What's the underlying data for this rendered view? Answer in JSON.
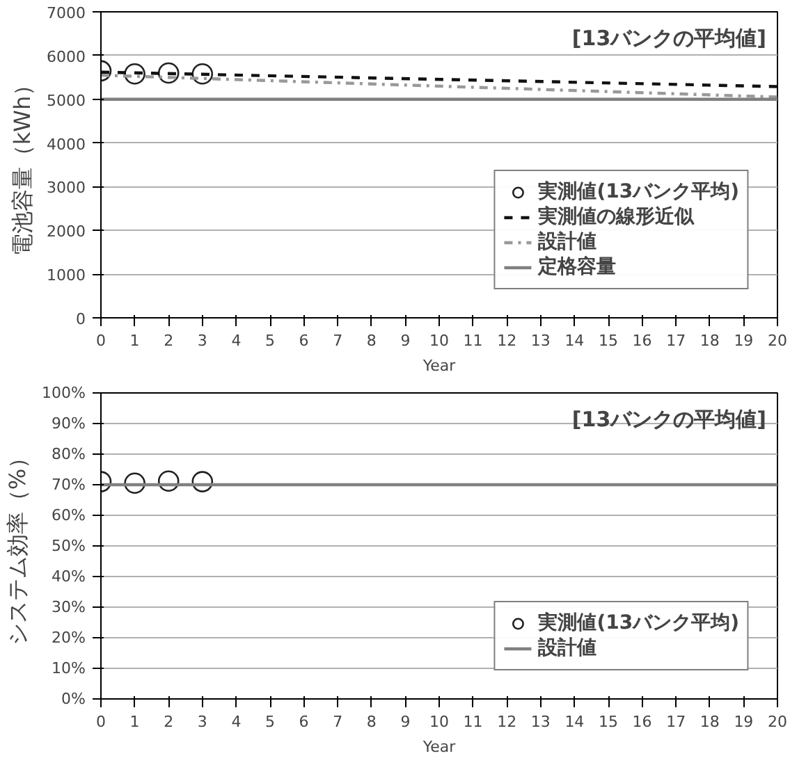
{
  "chart_data": [
    {
      "type": "line",
      "annotations": [
        "[13バンクの平均値]"
      ],
      "xlabel": "Year",
      "ylabel": "電池容量（kWh）",
      "xlim": [
        0,
        20
      ],
      "xticks": [
        0,
        1,
        2,
        3,
        4,
        5,
        6,
        7,
        8,
        9,
        10,
        11,
        12,
        13,
        14,
        15,
        16,
        17,
        18,
        19,
        20
      ],
      "ylim": [
        0,
        7000
      ],
      "yticks": [
        0,
        1000,
        2000,
        3000,
        4000,
        5000,
        6000,
        7000
      ],
      "grid": "y",
      "legend": "bottom right",
      "series": [
        {
          "name": "実測値(13バンク平均)",
          "type": "scatter",
          "marker": "circle",
          "color": "#222222",
          "x": [
            0,
            1,
            2,
            3
          ],
          "values": [
            5650,
            5580,
            5600,
            5580
          ]
        },
        {
          "name": "実測値の線形近似",
          "line_style": "dashed",
          "color": "#111111",
          "x": [
            0,
            20
          ],
          "values": [
            5620,
            5290
          ]
        },
        {
          "name": "設計値",
          "line_style": "dashdot",
          "color": "#999999",
          "x": [
            0,
            20
          ],
          "values": [
            5550,
            5050
          ]
        },
        {
          "name": "定格容量",
          "line_style": "solid",
          "color": "#808080",
          "x": [
            0,
            20
          ],
          "values": [
            5000,
            5000
          ]
        }
      ]
    },
    {
      "type": "line",
      "annotations": [
        "[13バンクの平均値]"
      ],
      "xlabel": "Year",
      "ylabel": "システム効率（%）",
      "xlim": [
        0,
        20
      ],
      "xticks": [
        0,
        1,
        2,
        3,
        4,
        5,
        6,
        7,
        8,
        9,
        10,
        11,
        12,
        13,
        14,
        15,
        16,
        17,
        18,
        19,
        20
      ],
      "ylim": [
        0,
        100
      ],
      "yticks": [
        {
          "value": 0,
          "label": "0%"
        },
        {
          "value": 10,
          "label": "10%"
        },
        {
          "value": 20,
          "label": "20%"
        },
        {
          "value": 30,
          "label": "30%"
        },
        {
          "value": 40,
          "label": "40%"
        },
        {
          "value": 50,
          "label": "50%"
        },
        {
          "value": 60,
          "label": "60%"
        },
        {
          "value": 70,
          "label": "70%"
        },
        {
          "value": 80,
          "label": "80%"
        },
        {
          "value": 90,
          "label": "90%"
        },
        {
          "value": 100,
          "label": "100%"
        }
      ],
      "grid": "y",
      "legend": "bottom right",
      "series": [
        {
          "name": "実測値(13バンク平均)",
          "type": "scatter",
          "marker": "circle",
          "color": "#222222",
          "x": [
            0,
            1,
            2,
            3
          ],
          "values": [
            71,
            70.5,
            71.2,
            71
          ]
        },
        {
          "name": "設計値",
          "line_style": "solid",
          "color": "#808080",
          "x": [
            0,
            20
          ],
          "values": [
            70,
            70
          ]
        }
      ]
    }
  ]
}
